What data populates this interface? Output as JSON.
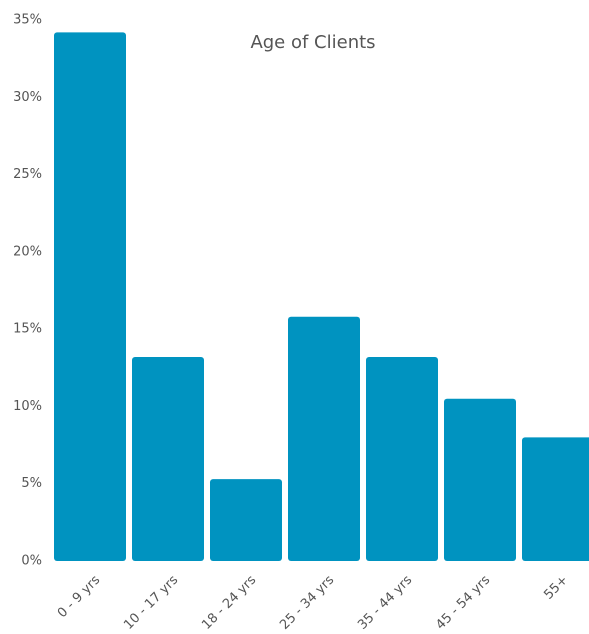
{
  "chart_data": {
    "type": "bar",
    "title": "Age of Clients",
    "categories": [
      "0 - 9 yrs",
      "10 - 17 yrs",
      "18 - 24 yrs",
      "25 - 34 yrs",
      "35 - 44 yrs",
      "45 - 54 yrs",
      "55+"
    ],
    "values": [
      34.2,
      13.2,
      5.3,
      15.8,
      13.2,
      10.5,
      8.0
    ],
    "color": "#0093c0",
    "ylim": [
      0,
      35
    ],
    "yticks": [
      {
        "value": 0,
        "label": "0%"
      },
      {
        "value": 5,
        "label": "5%"
      },
      {
        "value": 10,
        "label": "10%"
      },
      {
        "value": 15,
        "label": "15%"
      },
      {
        "value": 20,
        "label": "20%"
      },
      {
        "value": 25,
        "label": "25%"
      },
      {
        "value": 30,
        "label": "30%"
      },
      {
        "value": 35,
        "label": "35%"
      }
    ],
    "grid": false
  }
}
